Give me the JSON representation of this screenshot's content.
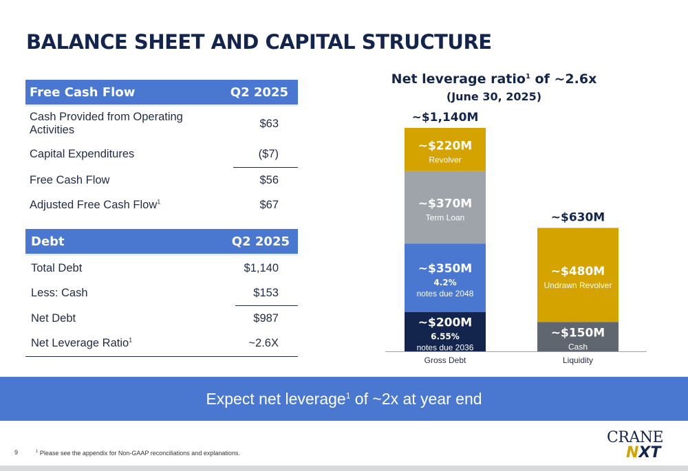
{
  "page_title": "BALANCE SHEET AND CAPITAL STRUCTURE",
  "fcf_table": {
    "header": [
      "Free Cash Flow",
      "Q2 2025"
    ],
    "rows": [
      {
        "label": "Cash Provided from Operating Activities",
        "value": "$63"
      },
      {
        "label": "Capital Expenditures",
        "value": "($7)"
      },
      {
        "label": "Free Cash Flow",
        "value": "$56"
      },
      {
        "label": "Adjusted Free Cash Flow",
        "sup": "1",
        "value": "$67"
      }
    ]
  },
  "debt_table": {
    "header": [
      "Debt",
      "Q2 2025"
    ],
    "rows": [
      {
        "label": "Total Debt",
        "value": "$1,140"
      },
      {
        "label": "Less: Cash",
        "value": "$153"
      },
      {
        "label": "Net Debt",
        "value": "$987"
      },
      {
        "label": "Net Leverage Ratio",
        "sup": "1",
        "value": "~2.6X"
      }
    ]
  },
  "chart_data": {
    "type": "bar",
    "stacked": true,
    "title": "Net leverage ratio",
    "title_sup": "1",
    "title_rest": " of ~2.6x",
    "subtitle": "(June 30, 2025)",
    "categories": [
      "Gross Debt",
      "Liquidity"
    ],
    "totals": [
      "~$1,140M",
      "~$630M"
    ],
    "stacks": [
      [
        {
          "value": 200,
          "label": "~$200M",
          "sub1": "6.55%",
          "sub2": "notes due 2036",
          "color": "#14254d"
        },
        {
          "value": 350,
          "label": "~$350M",
          "sub1": "4.2%",
          "sub2": "notes due 2048",
          "color": "#4a78d1"
        },
        {
          "value": 370,
          "label": "~$370M",
          "sub1": "",
          "sub2": "Term Loan",
          "color": "#9ea4a9"
        },
        {
          "value": 220,
          "label": "~$220M",
          "sub1": "",
          "sub2": "Revolver",
          "color": "#d4a300"
        }
      ],
      [
        {
          "value": 150,
          "label": "~$150M",
          "sub1": "",
          "sub2": "Cash",
          "color": "#5f6670"
        },
        {
          "value": 480,
          "label": "~$480M",
          "sub1": "",
          "sub2": "Undrawn Revolver",
          "color": "#d4a300"
        }
      ]
    ],
    "ylim": [
      0,
      1140
    ]
  },
  "banner": {
    "text_a": "Expect net leverage",
    "sup": "1",
    "text_b": " of ~2x at year end"
  },
  "footnote": {
    "sup": "1",
    "text": " Please see the appendix for Non-GAAP reconciliations and explanations."
  },
  "page_number": "9",
  "logo": {
    "line1": "CRANE",
    "line2_a": "N",
    "line2_b": "XT"
  },
  "colors": {
    "accent_blue": "#4a78d1",
    "navy": "#14254d",
    "gold": "#d4a300",
    "gray": "#9ea4a9"
  }
}
